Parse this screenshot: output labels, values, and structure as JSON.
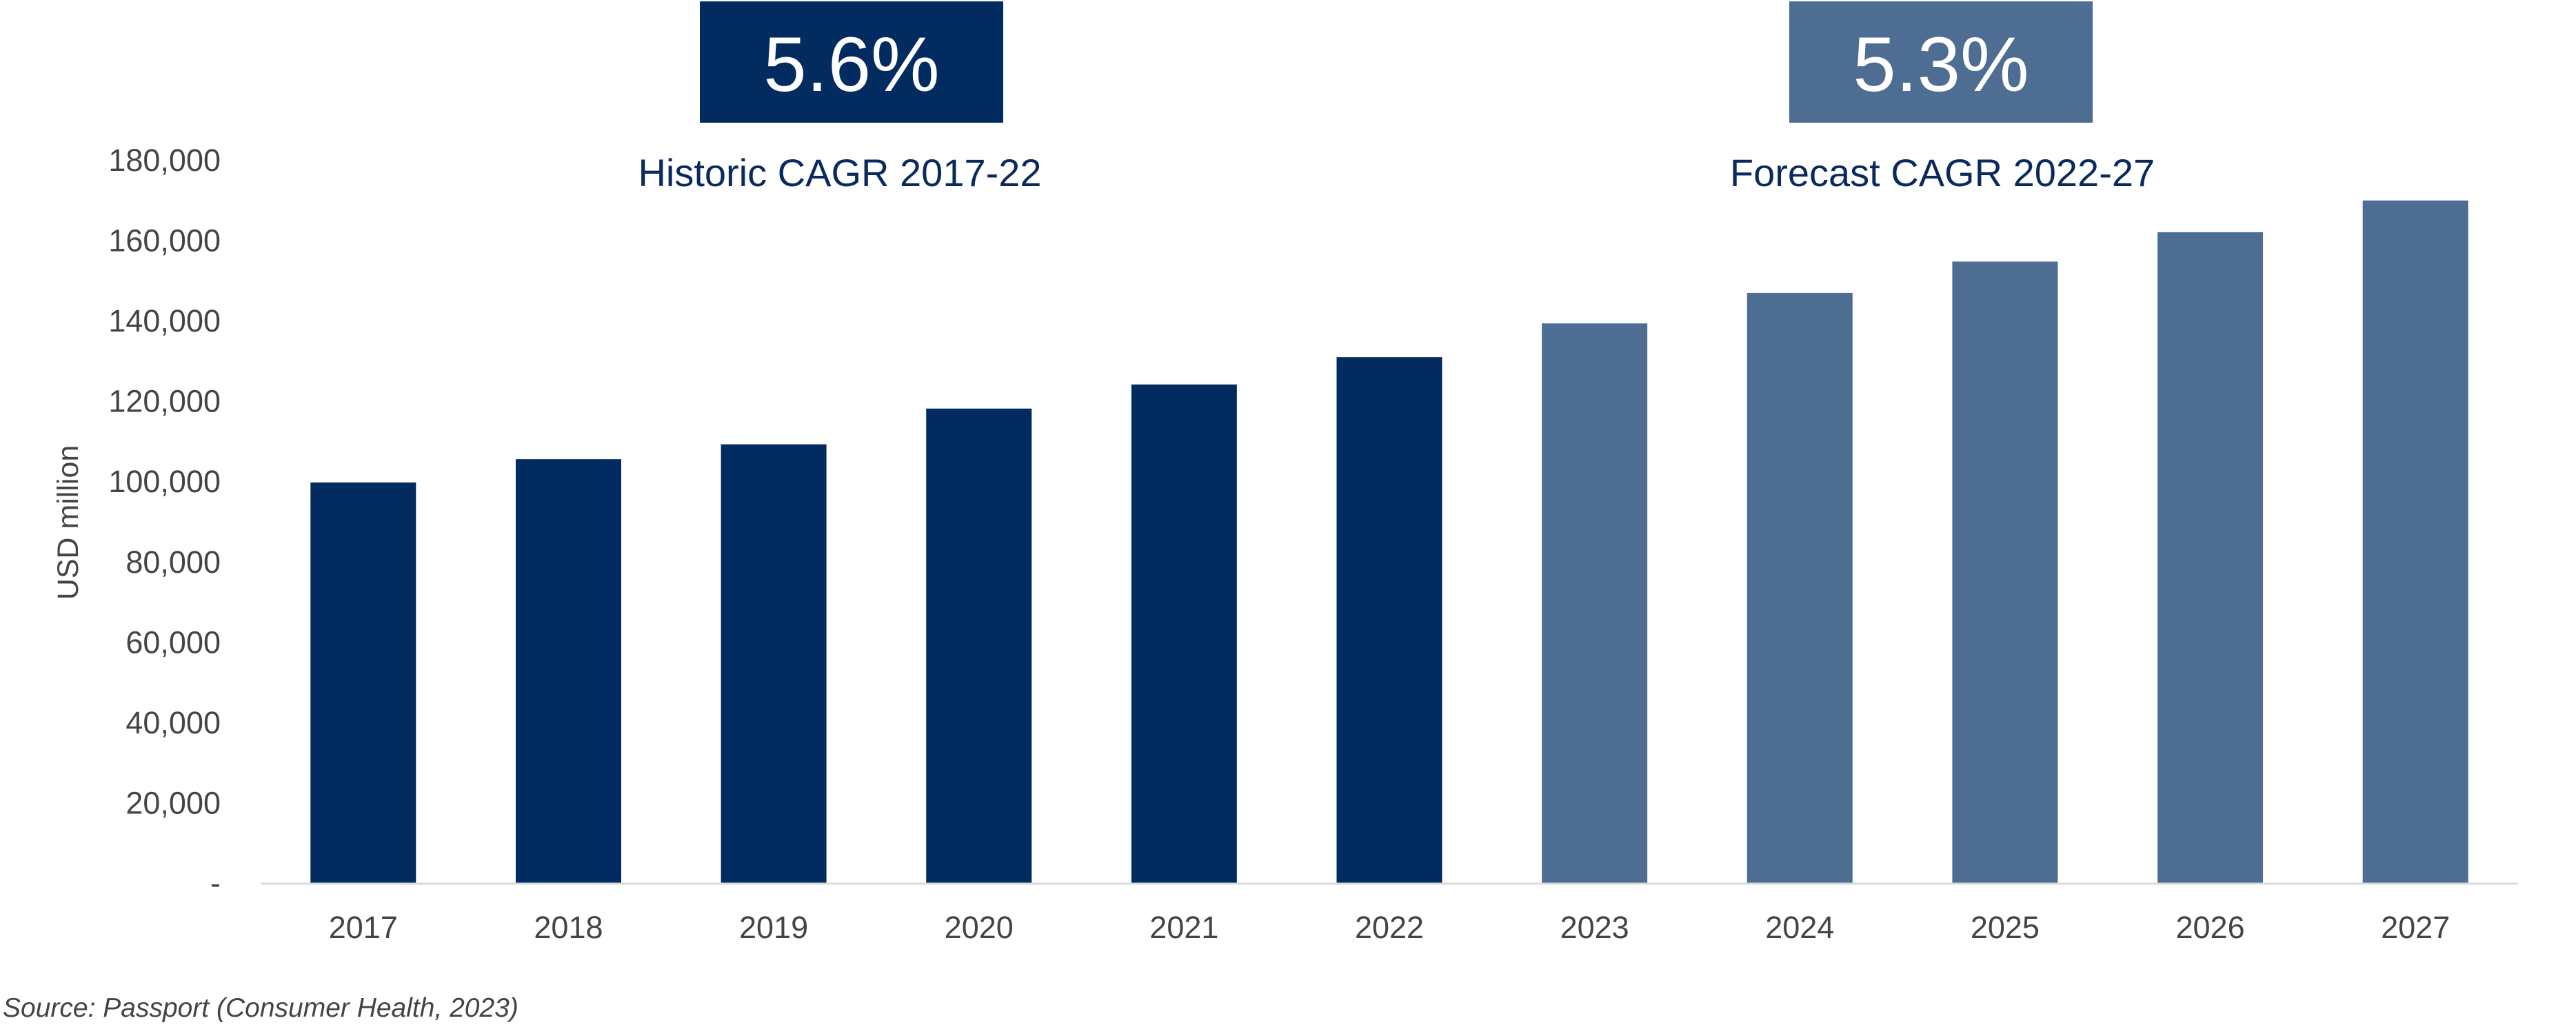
{
  "colors": {
    "historic": "#022b5f",
    "forecast": "#4d6d93",
    "axis": "#d9d9d9",
    "text": "#444444"
  },
  "cagr": {
    "historic_value": "5.6%",
    "historic_label": "Historic CAGR 2017-22",
    "forecast_value": "5.3%",
    "forecast_label": "Forecast CAGR 2022-27"
  },
  "source": "Source: Passport (Consumer Health, 2023)",
  "chart_data": {
    "type": "bar",
    "categories": [
      "2017",
      "2018",
      "2019",
      "2020",
      "2021",
      "2022",
      "2023",
      "2024",
      "2025",
      "2026",
      "2027"
    ],
    "series": [
      {
        "values": [
          99700,
          105500,
          109200,
          118100,
          124100,
          130900,
          139300,
          146900,
          154700,
          162000,
          169900
        ],
        "period": [
          "historic",
          "historic",
          "historic",
          "historic",
          "historic",
          "historic",
          "forecast",
          "forecast",
          "forecast",
          "forecast",
          "forecast"
        ]
      }
    ],
    "ylabel": "USD million",
    "xlabel": "",
    "ylim": [
      0,
      180000
    ],
    "y_ticks": [
      0,
      20000,
      40000,
      60000,
      80000,
      100000,
      120000,
      140000,
      160000,
      180000
    ],
    "y_tick_labels": [
      "-",
      "20,000",
      "40,000",
      "60,000",
      "80,000",
      "100,000",
      "120,000",
      "140,000",
      "160,000",
      "180,000"
    ],
    "grid": false,
    "legend": "none"
  }
}
